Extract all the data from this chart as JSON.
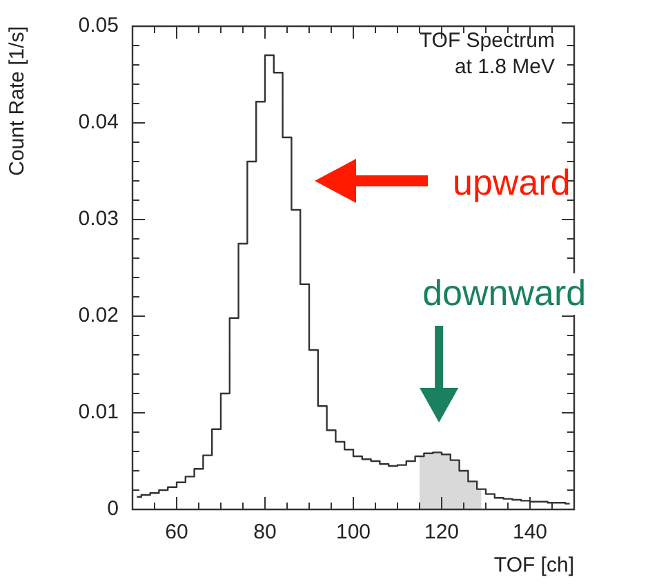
{
  "chart_data": {
    "type": "step",
    "legend": false,
    "title": "TOF Spectrum at 1.8 MeV",
    "xlabel": "TOF [ch]",
    "ylabel": "Count Rate [1/s]",
    "x": [
      51,
      53,
      55,
      57,
      59,
      61,
      63,
      65,
      67,
      69,
      71,
      73,
      75,
      77,
      79,
      81,
      83,
      85,
      87,
      89,
      91,
      93,
      95,
      97,
      99,
      101,
      103,
      105,
      107,
      109,
      111,
      113,
      115,
      117,
      119,
      121,
      123,
      125,
      127,
      129,
      131,
      133,
      135,
      137,
      139,
      141,
      143,
      145,
      147,
      149
    ],
    "series": [
      {
        "color": "#333333",
        "values": [
          0.0013,
          0.0015,
          0.0017,
          0.002,
          0.0023,
          0.0028,
          0.0034,
          0.0042,
          0.0056,
          0.0083,
          0.012,
          0.0198,
          0.0275,
          0.036,
          0.0422,
          0.047,
          0.0452,
          0.0385,
          0.031,
          0.0233,
          0.0165,
          0.0107,
          0.0082,
          0.007,
          0.0062,
          0.0055,
          0.0052,
          0.005,
          0.0047,
          0.0045,
          0.0046,
          0.005,
          0.0055,
          0.0058,
          0.0059,
          0.0057,
          0.0051,
          0.004,
          0.0029,
          0.0021,
          0.0016,
          0.0012,
          0.0011,
          0.001,
          0.0009,
          0.0008,
          0.0008,
          0.0007,
          0.0007,
          0.0006
        ]
      },
      {
        "type": "area",
        "color": "#d9d9d9",
        "x": [
          115,
          117,
          119,
          121,
          123,
          125,
          127,
          129
        ],
        "values": [
          0.0055,
          0.0058,
          0.0059,
          0.0057,
          0.0051,
          0.004,
          0.0029,
          0.0021
        ]
      }
    ],
    "xlim": [
      50,
      150
    ],
    "xticks": [
      {
        "value": 55,
        "label": null
      },
      60,
      {
        "value": 65,
        "label": null
      },
      {
        "value": 70,
        "label": null
      },
      {
        "value": 75,
        "label": null
      },
      80,
      {
        "value": 85,
        "label": null
      },
      {
        "value": 90,
        "label": null
      },
      {
        "value": 95,
        "label": null
      },
      100,
      {
        "value": 105,
        "label": null
      },
      {
        "value": 110,
        "label": null
      },
      {
        "value": 115,
        "label": null
      },
      120,
      {
        "value": 125,
        "label": null
      },
      {
        "value": 130,
        "label": null
      },
      {
        "value": 135,
        "label": null
      },
      140,
      {
        "value": 145,
        "label": null
      }
    ],
    "ylim": [
      0,
      0.05
    ],
    "yticks": [
      0,
      {
        "value": 0.002,
        "label": null
      },
      {
        "value": 0.004,
        "label": null
      },
      {
        "value": 0.006,
        "label": null
      },
      {
        "value": 0.008,
        "label": null
      },
      0.01,
      {
        "value": 0.012,
        "label": null
      },
      {
        "value": 0.014,
        "label": null
      },
      {
        "value": 0.016,
        "label": null
      },
      {
        "value": 0.018,
        "label": null
      },
      0.02,
      {
        "value": 0.022,
        "label": null
      },
      {
        "value": 0.024,
        "label": null
      },
      {
        "value": 0.026,
        "label": null
      },
      {
        "value": 0.028,
        "label": null
      },
      0.03,
      {
        "value": 0.032,
        "label": null
      },
      {
        "value": 0.034,
        "label": null
      },
      {
        "value": 0.036,
        "label": null
      },
      {
        "value": 0.038,
        "label": null
      },
      0.04,
      {
        "value": 0.042,
        "label": null
      },
      {
        "value": 0.044,
        "label": null
      },
      {
        "value": 0.046,
        "label": null
      },
      {
        "value": 0.048,
        "label": null
      },
      0.05
    ],
    "annotations": [
      "upward",
      "downward"
    ]
  }
}
